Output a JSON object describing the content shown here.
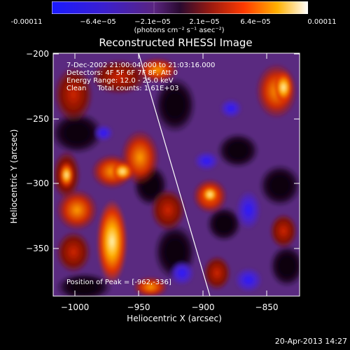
{
  "colorbar": {
    "ticks": [
      "-0.00011",
      "−6.4e−05",
      "−2.1e−05",
      "2.1e−05",
      "6.4e−05",
      "0.00011"
    ],
    "units": "(photons cm⁻² s⁻¹ asec⁻²)"
  },
  "title": "Reconstructed RHESSI Image",
  "info": {
    "time": "7-Dec-2002 21:00:04.000 to 21:03:16.000",
    "detectors": "Detectors: 4F 5F 6F 7F 8F, Att 0",
    "energy": "Energy Range: 12.0 - 25.0 keV",
    "clean": "Clean     Total counts: 1.61E+03"
  },
  "axes": {
    "xlabel": "Heliocentric X (arcsec)",
    "ylabel": "Heliocentric Y (arcsec)",
    "xticks": [
      "−1000",
      "−950",
      "−900",
      "−850"
    ],
    "yticks": [
      "−200",
      "−250",
      "−300",
      "−350"
    ]
  },
  "peak": "Position of Peak = [-962,-336]",
  "timestamp": "20-Apr-2013 14:27"
}
